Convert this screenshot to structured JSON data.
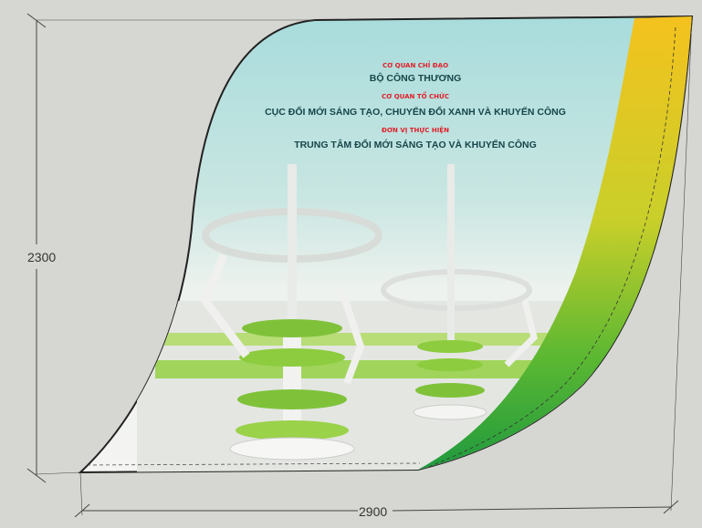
{
  "dimensions": {
    "height": "2300",
    "width": "2900"
  },
  "banner": {
    "lines": [
      {
        "label": "CƠ QUAN CHỈ ĐẠO",
        "name": "BỘ CÔNG THƯƠNG"
      },
      {
        "label": "CƠ QUAN TỔ CHỨC",
        "name": "CỤC ĐỔI MỚI SÁNG TẠO, CHUYỂN ĐỔI XANH VÀ KHUYẾN CÔNG"
      },
      {
        "label": "ĐƠN VỊ THỰC HIỆN",
        "name": "TRUNG TÂM ĐỔI MỚI SÁNG TẠO VÀ KHUYẾN CÔNG"
      }
    ]
  }
}
